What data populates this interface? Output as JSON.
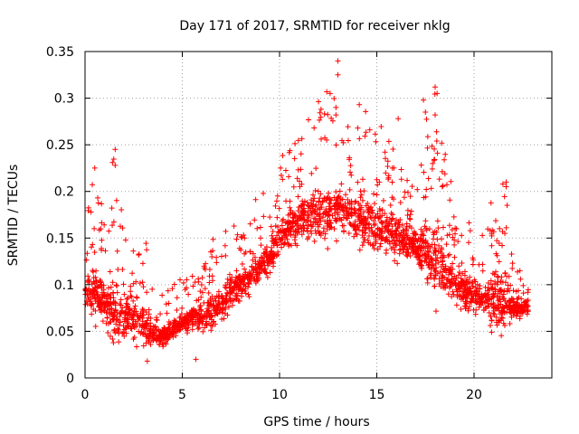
{
  "chart_data": {
    "type": "scatter",
    "title": "Day 171 of 2017, SRMTID for receiver nklg",
    "xlabel": "GPS time / hours",
    "ylabel": "SRMTID / TECUs",
    "xlim": [
      0,
      24
    ],
    "ylim": [
      0,
      0.35
    ],
    "xticks": [
      0,
      5,
      10,
      15,
      20
    ],
    "xtick_labels": [
      "0",
      "5",
      "10",
      "15",
      "20"
    ],
    "yticks": [
      0,
      0.05,
      0.1,
      0.15,
      0.2,
      0.25,
      0.3,
      0.35
    ],
    "ytick_labels": [
      "0",
      "0.05",
      "0.1",
      "0.15",
      "0.2",
      "0.25",
      "0.3",
      "0.35"
    ],
    "grid": true,
    "marker": "+",
    "color": "#ff0000",
    "series": [
      {
        "name": "SRMTID",
        "profile": {
          "hours": [
            0,
            0.5,
            1,
            1.5,
            2,
            2.5,
            3,
            3.5,
            4,
            4.5,
            5,
            5.5,
            6,
            6.5,
            7,
            7.5,
            8,
            8.5,
            9,
            9.5,
            10,
            10.5,
            11,
            11.5,
            12,
            12.5,
            13,
            13.5,
            14,
            14.5,
            15,
            15.5,
            16,
            16.5,
            17,
            17.5,
            18,
            18.5,
            19,
            19.5,
            20,
            20.5,
            21,
            21.5,
            22,
            22.5,
            22.8
          ],
          "typical": [
            0.09,
            0.095,
            0.08,
            0.07,
            0.065,
            0.065,
            0.055,
            0.045,
            0.045,
            0.05,
            0.06,
            0.065,
            0.065,
            0.07,
            0.08,
            0.09,
            0.1,
            0.11,
            0.12,
            0.13,
            0.15,
            0.16,
            0.17,
            0.17,
            0.175,
            0.18,
            0.18,
            0.175,
            0.17,
            0.165,
            0.16,
            0.155,
            0.15,
            0.145,
            0.14,
            0.135,
            0.13,
            0.12,
            0.1,
            0.09,
            0.09,
            0.085,
            0.08,
            0.08,
            0.075,
            0.075,
            0.075
          ],
          "high": [
            0.16,
            0.225,
            0.17,
            0.245,
            0.16,
            0.16,
            0.165,
            0.09,
            0.09,
            0.1,
            0.11,
            0.12,
            0.12,
            0.15,
            0.17,
            0.17,
            0.17,
            0.18,
            0.21,
            0.21,
            0.24,
            0.25,
            0.26,
            0.28,
            0.3,
            0.34,
            0.28,
            0.27,
            0.29,
            0.29,
            0.28,
            0.26,
            0.24,
            0.22,
            0.2,
            0.28,
            0.31,
            0.25,
            0.19,
            0.18,
            0.17,
            0.15,
            0.21,
            0.21,
            0.13,
            0.11,
            0.11
          ]
        },
        "n_points": 2600,
        "seed": 171
      }
    ],
    "outliers": [
      {
        "x": 0.5,
        "y": 0.225
      },
      {
        "x": 1.55,
        "y": 0.245
      },
      {
        "x": 1.55,
        "y": 0.228
      },
      {
        "x": 12.6,
        "y": 0.305
      },
      {
        "x": 13.0,
        "y": 0.34
      },
      {
        "x": 13.0,
        "y": 0.325
      },
      {
        "x": 12.9,
        "y": 0.29
      },
      {
        "x": 14.1,
        "y": 0.293
      },
      {
        "x": 16.1,
        "y": 0.278
      },
      {
        "x": 17.4,
        "y": 0.298
      },
      {
        "x": 17.5,
        "y": 0.285
      },
      {
        "x": 18.0,
        "y": 0.312
      },
      {
        "x": 18.1,
        "y": 0.305
      },
      {
        "x": 18.0,
        "y": 0.282
      },
      {
        "x": 21.65,
        "y": 0.21
      },
      {
        "x": 21.65,
        "y": 0.205
      },
      {
        "x": 21.7,
        "y": 0.185
      },
      {
        "x": 3.2,
        "y": 0.018
      },
      {
        "x": 5.7,
        "y": 0.02
      }
    ]
  }
}
